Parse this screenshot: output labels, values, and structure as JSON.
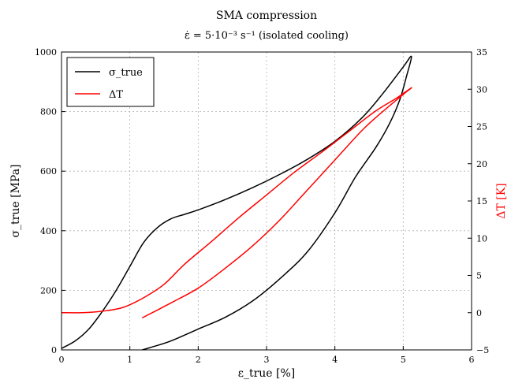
{
  "chart_data": {
    "type": "line",
    "title": "SMA compression",
    "subtitle": "ε̇ = 5·10⁻³ s⁻¹  (isolated cooling)",
    "xlabel": "ε_true [%]",
    "ylabel_left": "σ_true [MPa]",
    "ylabel_right": "ΔT [K]",
    "xlim": [
      0,
      6
    ],
    "ylim_left": [
      0,
      1000
    ],
    "ylim_right": [
      -5,
      35
    ],
    "x_ticks": [
      "0",
      "1",
      "2",
      "3",
      "4",
      "5",
      "6"
    ],
    "y_left_ticks": [
      "0",
      "200",
      "400",
      "600",
      "800",
      "1000"
    ],
    "y_right_ticks": [
      "−5",
      "0",
      "5",
      "10",
      "15",
      "20",
      "25",
      "30",
      "35"
    ],
    "grid": true,
    "legend_position": "top-left",
    "series": [
      {
        "name": "σ_true",
        "axis": "left",
        "color": "#000000",
        "x": [
          0.0,
          0.2,
          0.4,
          0.6,
          0.8,
          1.0,
          1.2,
          1.4,
          1.6,
          1.8,
          2.0,
          2.4,
          2.8,
          3.2,
          3.6,
          4.0,
          4.4,
          4.7,
          5.0,
          5.12,
          5.05,
          4.95,
          4.8,
          4.6,
          4.3,
          4.0,
          3.6,
          3.2,
          2.8,
          2.4,
          2.0,
          1.6,
          1.3,
          1.18
        ],
        "y": [
          5,
          30,
          70,
          130,
          200,
          280,
          360,
          410,
          440,
          455,
          470,
          505,
          545,
          590,
          640,
          700,
          780,
          860,
          950,
          985,
          920,
          840,
          760,
          680,
          580,
          460,
          330,
          240,
          165,
          110,
          70,
          30,
          8,
          0
        ]
      },
      {
        "name": "ΔT",
        "axis": "right",
        "color": "#ff0000",
        "x": [
          0.0,
          0.3,
          0.6,
          0.9,
          1.2,
          1.5,
          1.8,
          2.2,
          2.6,
          3.0,
          3.4,
          3.8,
          4.2,
          4.6,
          4.9,
          5.12,
          5.0,
          4.7,
          4.4,
          4.0,
          3.6,
          3.2,
          2.8,
          2.4,
          2.0,
          1.6,
          1.35,
          1.18
        ],
        "y": [
          0.0,
          0.0,
          0.2,
          0.7,
          2.0,
          3.8,
          6.5,
          9.6,
          12.8,
          15.8,
          18.8,
          21.5,
          24.3,
          27.1,
          28.8,
          30.2,
          29.3,
          27.0,
          24.5,
          20.5,
          16.5,
          12.5,
          9.0,
          6.0,
          3.3,
          1.3,
          0.1,
          -0.7
        ]
      }
    ]
  }
}
